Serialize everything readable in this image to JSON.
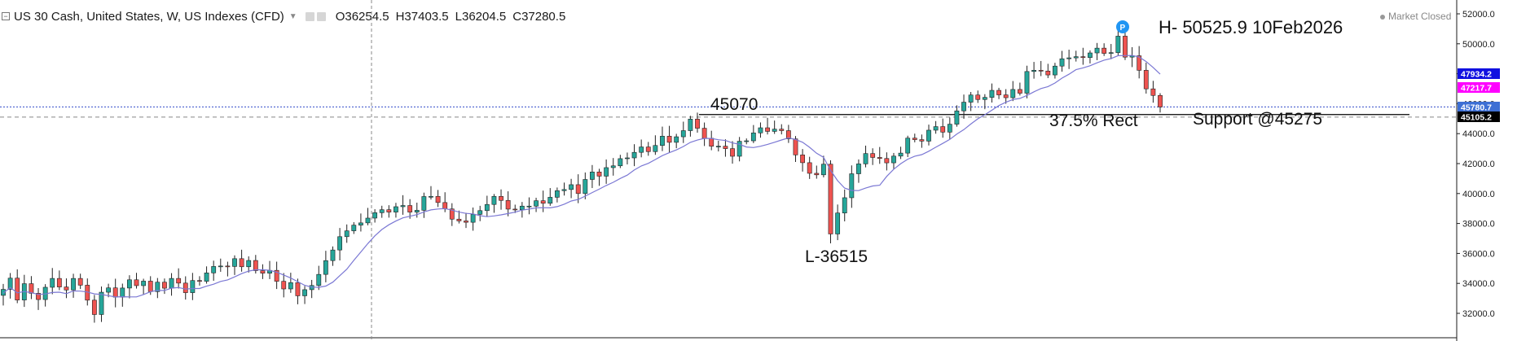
{
  "header": {
    "title": "US 30 Cash, United States, W, US Indexes (CFD)",
    "open": "O36254.5",
    "high": "H37403.5",
    "low": "L36204.5",
    "close": "C37280.5",
    "market_status": "Market Closed"
  },
  "colors": {
    "up": "#26a69a",
    "down": "#ef5350",
    "ma": "#7b78d4",
    "price_line": "#3049c9",
    "badge_ma_blue": "#1010e0",
    "badge_ma_magenta": "#ff00ff",
    "badge_price": "#3d6fd4",
    "badge_support": "#000000"
  },
  "price_badges": [
    {
      "label": "47934.2",
      "color": "#1010e0"
    },
    {
      "label": "47217.7",
      "color": "#ff00ff"
    },
    {
      "label": "45780.7",
      "color": "#3d6fd4"
    },
    {
      "label": "45105.2",
      "color": "#000000"
    }
  ],
  "annotations": {
    "high_label": "H- 50525.9 10Feb2026",
    "peak_label": "45070",
    "low_label": "L-36515",
    "retrace_label": "37.5% Rect",
    "support_label": "Support @45275",
    "marker_label": "P"
  },
  "chart_data": {
    "type": "candlestick",
    "interval": "W",
    "ylim": [
      31000,
      52500
    ],
    "yticks": [
      "52000.0",
      "50000.0",
      "48000.0",
      "46000.0",
      "44000.0",
      "42000.0",
      "40000.0",
      "38000.0",
      "36000.0",
      "34000.0",
      "32000.0"
    ],
    "grid": false,
    "current_price": 45780.7,
    "support_level": 45275,
    "reference_level": 45105.2,
    "candles": [
      33600,
      34350,
      32890,
      33980,
      33340,
      32920,
      33740,
      34330,
      33760,
      33560,
      34330,
      33880,
      32880,
      31920,
      33410,
      33700,
      33080,
      33690,
      34240,
      33850,
      34150,
      33450,
      34080,
      33680,
      34330,
      34020,
      33380,
      34190,
      34140,
      34700,
      35130,
      35160,
      35130,
      35650,
      35110,
      35530,
      34850,
      34680,
      34870,
      34140,
      33630,
      34050,
      33170,
      33580,
      33860,
      34600,
      35520,
      36230,
      37120,
      37510,
      37890,
      38040,
      38360,
      38720,
      38920,
      38760,
      39120,
      39200,
      38760,
      38880,
      39800,
      39810,
      39400,
      38970,
      38290,
      38170,
      38080,
      38610,
      38860,
      39270,
      39810,
      39540,
      38960,
      38920,
      39160,
      39160,
      39520,
      39350,
      39750,
      40190,
      40270,
      40590,
      40000,
      40940,
      41440,
      41160,
      41730,
      41850,
      42330,
      42380,
      42750,
      43110,
      42800,
      43210,
      43830,
      43420,
      43790,
      44200,
      44970,
      44360,
      43690,
      43160,
      43160,
      43000,
      42490,
      43490,
      43520,
      44050,
      44390,
      44150,
      44300,
      44200,
      43650,
      42580,
      42060,
      41350,
      41250,
      41960,
      37300,
      38700,
      39720,
      41320,
      41980,
      42670,
      42410,
      42340,
      42050,
      42500,
      42700,
      43700,
      43600,
      43500,
      44230,
      44470,
      44100,
      44630,
      45520,
      46100,
      46580,
      46280,
      46420,
      46890,
      46590,
      46400,
      46950,
      46700,
      48150,
      48230,
      48180,
      47920,
      48510,
      49000,
      49060,
      49140,
      49080,
      49390,
      49710,
      49360,
      49410,
      50510,
      49110,
      49200,
      48230,
      46990,
      46550,
      45780
    ]
  }
}
